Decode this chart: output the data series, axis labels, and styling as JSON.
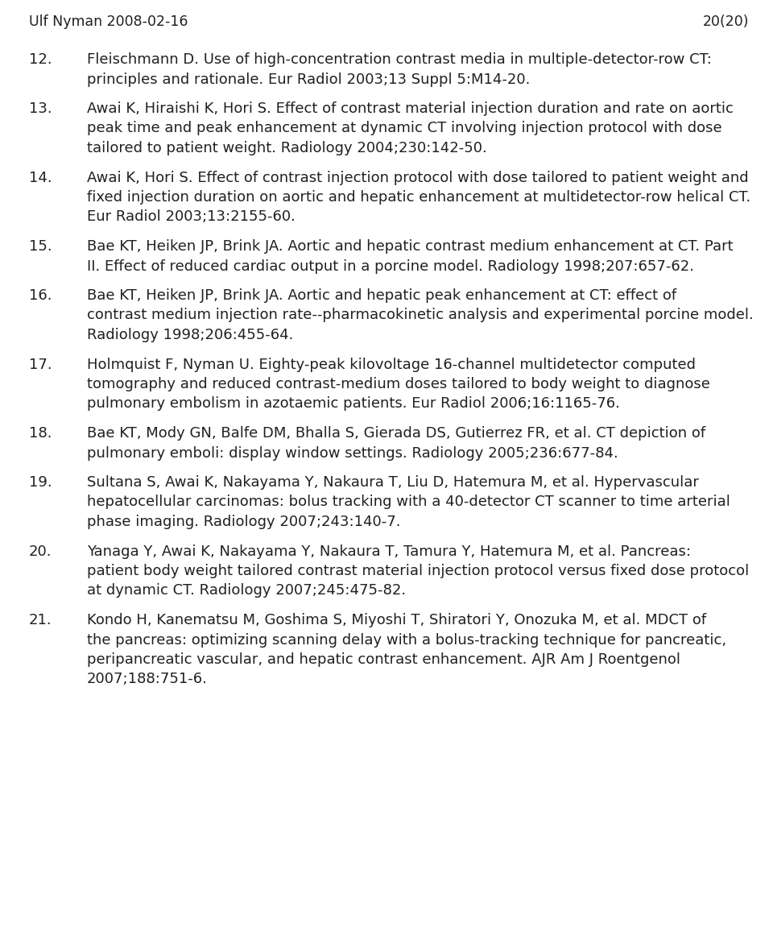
{
  "header_left": "Ulf Nyman 2008-02-16",
  "header_right": "20(20)",
  "header_fontsize": 12.5,
  "background_color": "#ffffff",
  "text_color": "#231f20",
  "body_fontsize": 13.0,
  "references": [
    {
      "number": "12.",
      "lines": [
        "Fleischmann D. Use of high-concentration contrast media in multiple-detector-row CT:",
        "principles and rationale. Eur Radiol 2003;13 Suppl 5:M14-20."
      ]
    },
    {
      "number": "13.",
      "lines": [
        "Awai K, Hiraishi K, Hori S. Effect of contrast material injection duration and rate on aortic",
        "peak time and peak enhancement at dynamic CT involving injection protocol with dose",
        "tailored to patient weight. Radiology 2004;230:142-50."
      ]
    },
    {
      "number": "14.",
      "lines": [
        "Awai K, Hori S. Effect of contrast injection protocol with dose tailored to patient weight and",
        "fixed injection duration on aortic and hepatic enhancement at multidetector-row helical CT.",
        "Eur Radiol 2003;13:2155-60."
      ]
    },
    {
      "number": "15.",
      "lines": [
        "Bae KT, Heiken JP, Brink JA. Aortic and hepatic contrast medium enhancement at CT. Part",
        "II. Effect of reduced cardiac output in a porcine model. Radiology 1998;207:657-62."
      ]
    },
    {
      "number": "16.",
      "lines": [
        "Bae KT, Heiken JP, Brink JA. Aortic and hepatic peak enhancement at CT: effect of",
        "contrast medium injection rate--pharmacokinetic analysis and experimental porcine model.",
        "Radiology 1998;206:455-64."
      ]
    },
    {
      "number": "17.",
      "lines": [
        "Holmquist F, Nyman U. Eighty-peak kilovoltage 16-channel multidetector computed",
        "tomography and reduced contrast-medium doses tailored to body weight to diagnose",
        "pulmonary embolism in azotaemic patients. Eur Radiol 2006;16:1165-76."
      ]
    },
    {
      "number": "18.",
      "lines": [
        "Bae KT, Mody GN, Balfe DM, Bhalla S, Gierada DS, Gutierrez FR, et al. CT depiction of",
        "pulmonary emboli: display window settings. Radiology 2005;236:677-84."
      ]
    },
    {
      "number": "19.",
      "lines": [
        "Sultana S, Awai K, Nakayama Y, Nakaura T, Liu D, Hatemura M, et al. Hypervascular",
        "hepatocellular carcinomas: bolus tracking with a 40-detector CT scanner to time arterial",
        "phase imaging. Radiology 2007;243:140-7."
      ]
    },
    {
      "number": "20.",
      "lines": [
        "Yanaga Y, Awai K, Nakayama Y, Nakaura T, Tamura Y, Hatemura M, et al. Pancreas:",
        "patient body weight tailored contrast material injection protocol versus fixed dose protocol",
        "at dynamic CT. Radiology 2007;245:475-82."
      ]
    },
    {
      "number": "21.",
      "lines": [
        "Kondo H, Kanematsu M, Goshima S, Miyoshi T, Shiratori Y, Onozuka M, et al. MDCT of",
        "the pancreas: optimizing scanning delay with a bolus-tracking technique for pancreatic,",
        "peripancreatic vascular, and hepatic contrast enhancement. AJR Am J Roentgenol",
        "2007;188:751-6."
      ]
    }
  ]
}
